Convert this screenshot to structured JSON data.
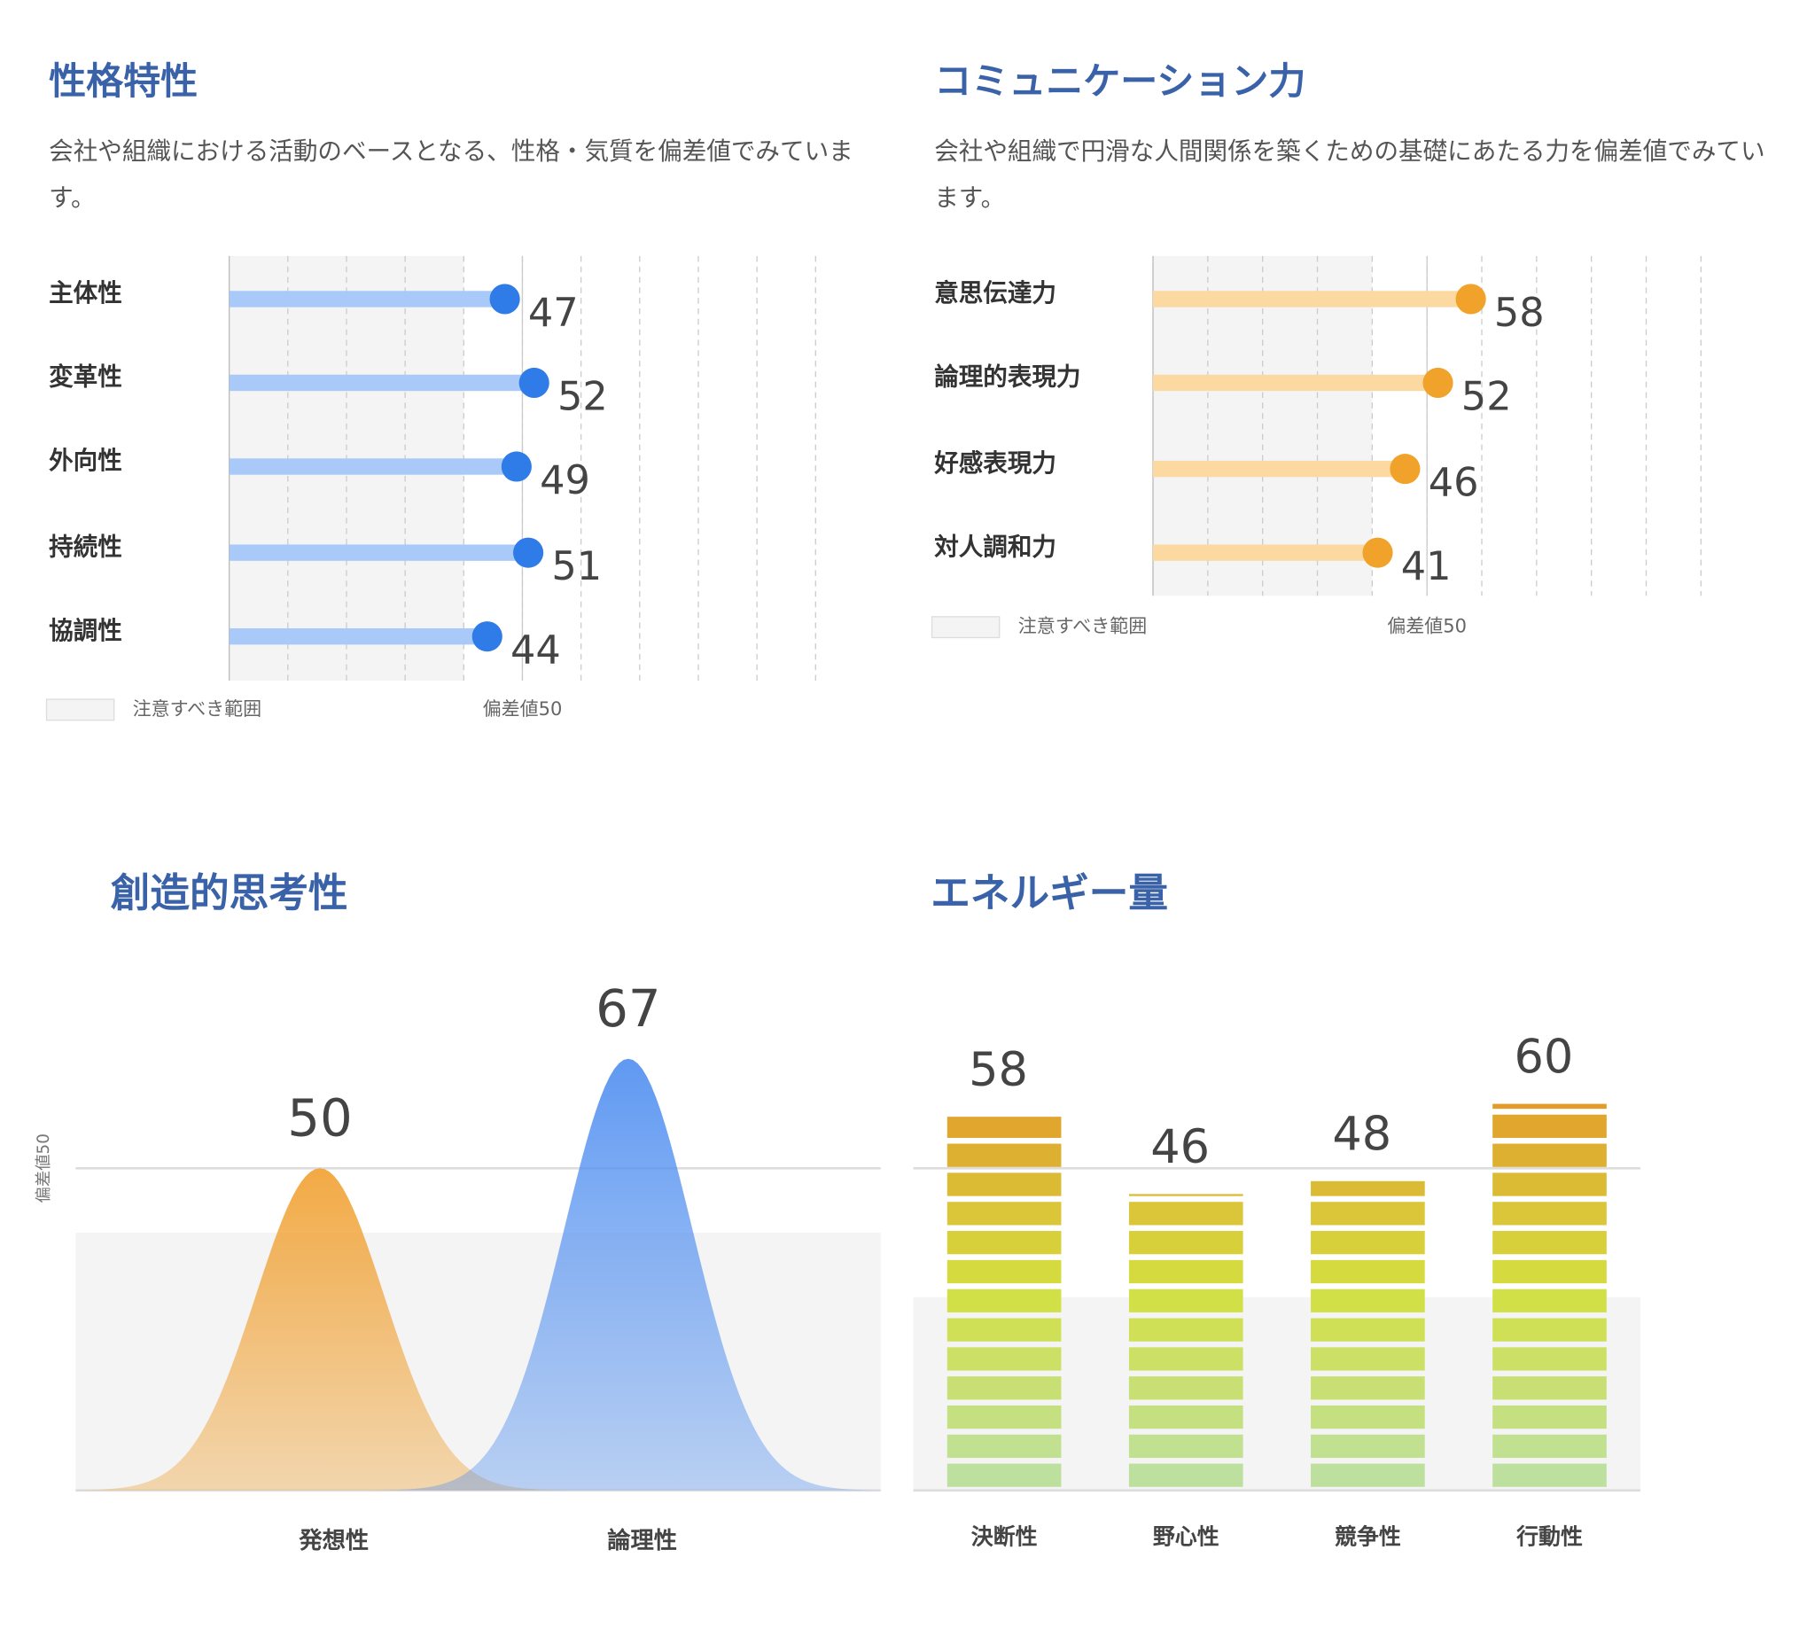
{
  "chart_data": [
    {
      "type": "lollipop",
      "title": "性格特性",
      "description": "会社や組織における活動のベースとなる、性格・気質を偏差値でみています。",
      "categories": [
        "主体性",
        "変革性",
        "外向性",
        "持続性",
        "協調性"
      ],
      "values": [
        47,
        52,
        49,
        51,
        44
      ],
      "color": "#2f7be8",
      "bar_color": "#a9c9f9",
      "xlim": [
        0,
        100
      ],
      "xticks": [
        10,
        20,
        30,
        40,
        50,
        60,
        70,
        80,
        90,
        100
      ],
      "caution_range": [
        0,
        40
      ],
      "reference": 50,
      "legend": [
        "注意すべき範囲",
        "偏差値50"
      ]
    },
    {
      "type": "lollipop",
      "title": "コミュニケーション力",
      "description": "会社や組織で円滑な人間関係を築くための基礎にあたる力を偏差値でみています。",
      "categories": [
        "意思伝達力",
        "論理的表現力",
        "好感表現力",
        "対人調和力"
      ],
      "values": [
        58,
        52,
        46,
        41
      ],
      "color": "#f0a22a",
      "bar_color": "#fbd9a0",
      "xlim": [
        0,
        100
      ],
      "xticks": [
        10,
        20,
        30,
        40,
        50,
        60,
        70,
        80,
        90,
        100
      ],
      "caution_range": [
        0,
        40
      ],
      "reference": 50,
      "legend": [
        "注意すべき範囲",
        "偏差値50"
      ]
    },
    {
      "type": "bell",
      "title": "創造的思考性",
      "categories": [
        "発想性",
        "論理性"
      ],
      "values": [
        50,
        67
      ],
      "colors": [
        "#f0a030",
        "#4f8ef0"
      ],
      "ylim": [
        0,
        80
      ],
      "caution_range": [
        0,
        40
      ],
      "reference": 50,
      "reference_label": "偏差値50"
    },
    {
      "type": "segmented_bar",
      "title": "エネルギー量",
      "categories": [
        "決断性",
        "野心性",
        "競争性",
        "行動性"
      ],
      "values": [
        58,
        46,
        48,
        60
      ],
      "colors": [
        "#bde0a0",
        "#d4e040",
        "#e39a2a"
      ],
      "ylim": [
        0,
        80
      ],
      "caution_range": [
        0,
        30
      ],
      "reference": 50
    }
  ]
}
